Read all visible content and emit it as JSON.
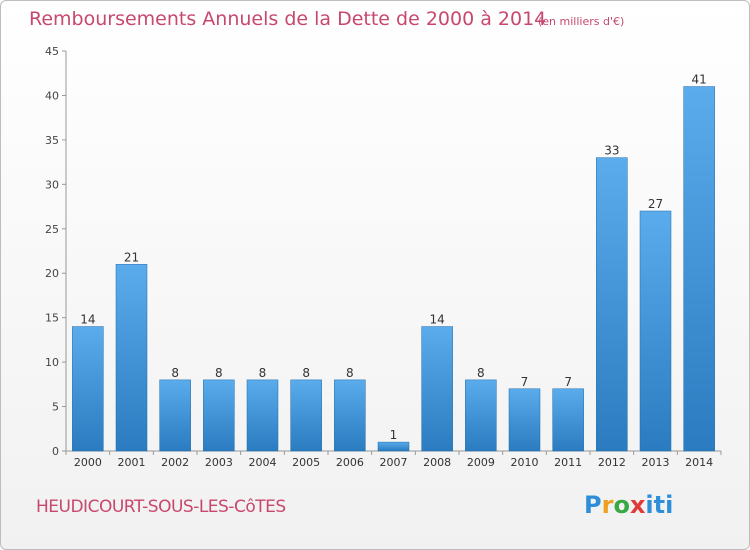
{
  "header": {
    "title": "Remboursements Annuels de la Dette de 2000 à 2014",
    "unit": "(en milliers d'€)"
  },
  "footer": {
    "commune": "HEUDICOURT-SOUS-LES-CôTES",
    "logo": "Proxiti"
  },
  "colors": {
    "title": "#c8486d",
    "bar_top": "#5aacec",
    "bar_bottom": "#2b7bc0"
  },
  "chart_data": {
    "type": "bar",
    "title": "Remboursements Annuels de la Dette de 2000 à 2014",
    "unit": "(en milliers d'€)",
    "xlabel": "",
    "ylabel": "",
    "categories": [
      "2000",
      "2001",
      "2002",
      "2003",
      "2004",
      "2005",
      "2006",
      "2007",
      "2008",
      "2009",
      "2010",
      "2011",
      "2012",
      "2013",
      "2014"
    ],
    "values": [
      14,
      21,
      8,
      8,
      8,
      8,
      8,
      1,
      14,
      8,
      7,
      7,
      33,
      27,
      41
    ],
    "ylim": [
      0,
      45
    ],
    "yticks": [
      0,
      5,
      10,
      15,
      20,
      25,
      30,
      35,
      40,
      45
    ],
    "grid": false,
    "legend": "none"
  }
}
